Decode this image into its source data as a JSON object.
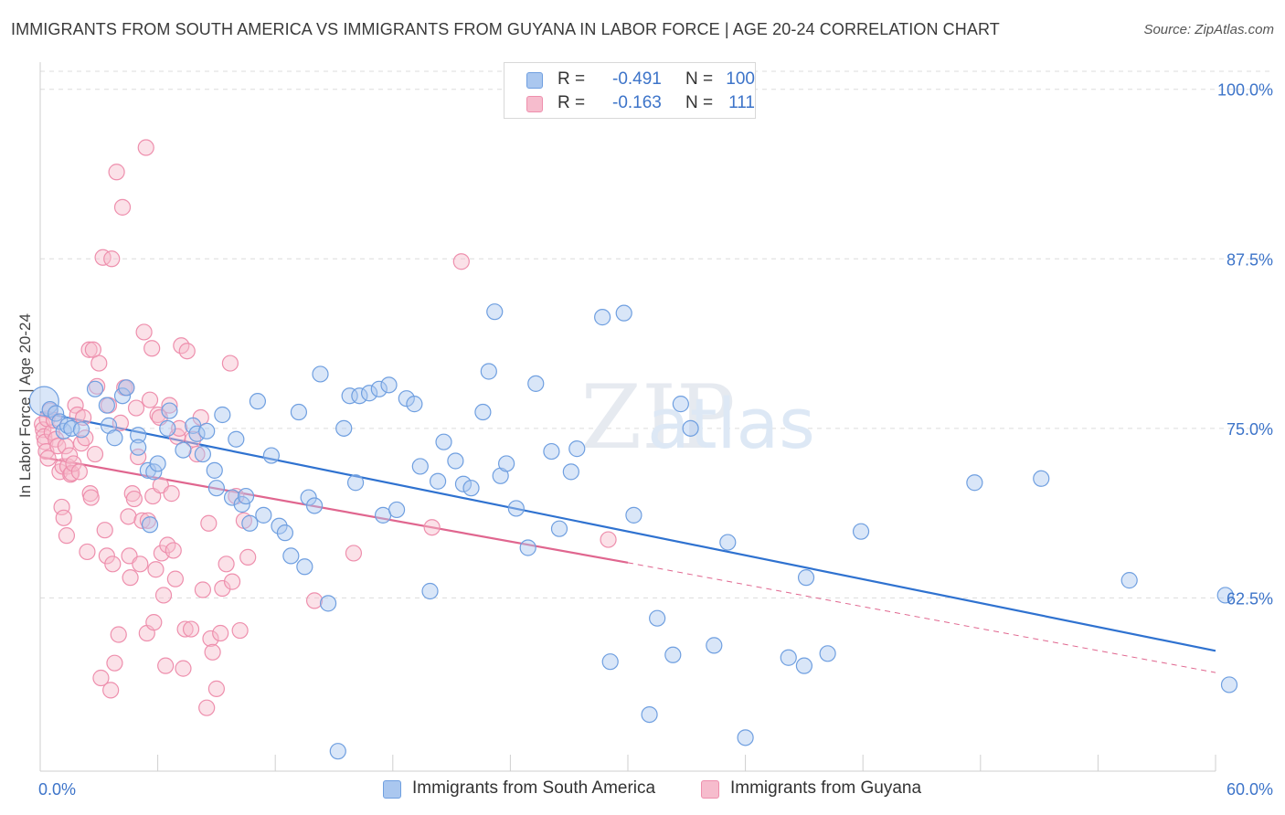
{
  "title": "IMMIGRANTS FROM SOUTH AMERICA VS IMMIGRANTS FROM GUYANA IN LABOR FORCE | AGE 20-24 CORRELATION CHART",
  "source": "Source: ZipAtlas.com",
  "watermark": "ZIPatlas",
  "legend": {
    "rows": [
      {
        "r_label": "R =",
        "r_value": "-0.491",
        "n_label": "N =",
        "n_value": "100",
        "color": "#7aaae8"
      },
      {
        "r_label": "R =",
        "r_value": "-0.163",
        "n_label": "N =",
        "n_value": "111",
        "color": "#f2a0b8"
      }
    ]
  },
  "bottom_legend": {
    "south_america": "Immigrants from South America",
    "guyana": "Immigrants from Guyana"
  },
  "colors": {
    "blue_fill": "#aac7ef",
    "blue_stroke": "#6f9fe0",
    "blue_line": "#2f72d0",
    "pink_fill": "#f6bccd",
    "pink_stroke": "#ee8fad",
    "pink_line": "#e0668f",
    "axis_text": "#3d74c9",
    "grid": "#dcdcdc"
  },
  "chart_data": {
    "type": "scatter",
    "title": "IMMIGRANTS FROM SOUTH AMERICA VS IMMIGRANTS FROM GUYANA IN LABOR FORCE | AGE 20-24 CORRELATION CHART",
    "xlabel": "",
    "ylabel": "In Labor Force | Age 20-24",
    "xlim": [
      0,
      60
    ],
    "ylim": [
      50,
      102
    ],
    "x_tick_labels": [
      {
        "value": 0,
        "label": "0.0%"
      },
      {
        "value": 60,
        "label": "60.0%"
      }
    ],
    "y_tick_labels": [
      {
        "value": 100,
        "label": "100.0%"
      },
      {
        "value": 87.5,
        "label": "87.5%"
      },
      {
        "value": 75,
        "label": "75.0%"
      },
      {
        "value": 62.5,
        "label": "62.5%"
      }
    ],
    "series": [
      {
        "name": "Immigrants from South America",
        "trend": {
          "x": [
            0,
            60
          ],
          "y": [
            76.2,
            58.6
          ]
        },
        "points": [
          [
            0.2,
            77.0
          ],
          [
            0.5,
            76.4
          ],
          [
            0.8,
            76.1
          ],
          [
            1.0,
            75.5
          ],
          [
            1.2,
            74.8
          ],
          [
            1.4,
            75.2
          ],
          [
            1.6,
            75.0
          ],
          [
            2.1,
            74.9
          ],
          [
            2.8,
            77.9
          ],
          [
            3.4,
            76.7
          ],
          [
            3.5,
            75.2
          ],
          [
            3.8,
            74.3
          ],
          [
            4.2,
            77.4
          ],
          [
            4.4,
            78.0
          ],
          [
            5.0,
            74.5
          ],
          [
            5.0,
            73.6
          ],
          [
            5.5,
            71.9
          ],
          [
            5.6,
            67.9
          ],
          [
            5.8,
            71.8
          ],
          [
            6.0,
            72.4
          ],
          [
            6.5,
            75.0
          ],
          [
            6.6,
            76.3
          ],
          [
            7.3,
            73.4
          ],
          [
            7.8,
            75.2
          ],
          [
            8.0,
            74.6
          ],
          [
            8.3,
            73.1
          ],
          [
            8.5,
            74.8
          ],
          [
            8.9,
            71.9
          ],
          [
            9.0,
            70.6
          ],
          [
            9.3,
            76.0
          ],
          [
            9.8,
            69.9
          ],
          [
            10.0,
            74.2
          ],
          [
            10.3,
            69.4
          ],
          [
            10.5,
            70.0
          ],
          [
            10.7,
            68.0
          ],
          [
            11.1,
            77.0
          ],
          [
            11.4,
            68.6
          ],
          [
            11.8,
            73.0
          ],
          [
            12.2,
            67.8
          ],
          [
            12.5,
            67.3
          ],
          [
            12.8,
            65.6
          ],
          [
            13.2,
            76.2
          ],
          [
            13.5,
            64.8
          ],
          [
            13.7,
            69.9
          ],
          [
            14.0,
            69.3
          ],
          [
            14.3,
            79.0
          ],
          [
            14.7,
            62.1
          ],
          [
            15.2,
            51.2
          ],
          [
            15.5,
            75.0
          ],
          [
            15.8,
            77.4
          ],
          [
            16.1,
            71.0
          ],
          [
            16.3,
            77.4
          ],
          [
            16.8,
            77.6
          ],
          [
            17.3,
            77.9
          ],
          [
            17.5,
            68.6
          ],
          [
            17.8,
            78.2
          ],
          [
            18.2,
            69.0
          ],
          [
            18.7,
            77.2
          ],
          [
            19.1,
            76.8
          ],
          [
            19.4,
            72.2
          ],
          [
            19.9,
            63.0
          ],
          [
            20.3,
            71.1
          ],
          [
            20.6,
            74.0
          ],
          [
            21.2,
            72.6
          ],
          [
            21.6,
            70.9
          ],
          [
            22.0,
            70.6
          ],
          [
            22.6,
            76.2
          ],
          [
            22.9,
            79.2
          ],
          [
            23.2,
            83.6
          ],
          [
            23.5,
            71.5
          ],
          [
            23.8,
            72.4
          ],
          [
            24.3,
            69.1
          ],
          [
            24.9,
            66.2
          ],
          [
            25.3,
            78.3
          ],
          [
            26.1,
            73.3
          ],
          [
            26.5,
            67.6
          ],
          [
            27.1,
            71.8
          ],
          [
            27.4,
            73.5
          ],
          [
            28.7,
            83.2
          ],
          [
            29.1,
            57.8
          ],
          [
            29.8,
            83.5
          ],
          [
            30.3,
            68.6
          ],
          [
            31.1,
            53.9
          ],
          [
            31.5,
            61.0
          ],
          [
            32.3,
            58.3
          ],
          [
            32.7,
            76.8
          ],
          [
            33.2,
            75.0
          ],
          [
            34.4,
            59.0
          ],
          [
            35.1,
            66.6
          ],
          [
            36.0,
            52.2
          ],
          [
            38.2,
            58.1
          ],
          [
            39.0,
            57.5
          ],
          [
            39.1,
            64.0
          ],
          [
            40.2,
            58.4
          ],
          [
            41.9,
            67.4
          ],
          [
            47.7,
            71.0
          ],
          [
            51.1,
            71.3
          ],
          [
            55.6,
            63.8
          ],
          [
            60.5,
            62.7
          ],
          [
            60.7,
            56.1
          ]
        ]
      },
      {
        "name": "Immigrants from Guyana",
        "trend": {
          "x": [
            0,
            30
          ],
          "y": [
            72.9,
            65.1
          ]
        },
        "trend_dashed": {
          "x": [
            30,
            60
          ],
          "y": [
            65.1,
            57.0
          ]
        },
        "points": [
          [
            0.1,
            75.3
          ],
          [
            0.15,
            74.9
          ],
          [
            0.2,
            74.4
          ],
          [
            0.25,
            74.0
          ],
          [
            0.3,
            73.3
          ],
          [
            0.35,
            75.7
          ],
          [
            0.4,
            72.8
          ],
          [
            0.5,
            76.3
          ],
          [
            0.6,
            74.7
          ],
          [
            0.7,
            75.6
          ],
          [
            0.8,
            74.2
          ],
          [
            0.9,
            73.7
          ],
          [
            1.0,
            71.8
          ],
          [
            1.1,
            69.2
          ],
          [
            1.15,
            72.2
          ],
          [
            1.2,
            68.4
          ],
          [
            1.3,
            73.7
          ],
          [
            1.35,
            67.1
          ],
          [
            1.4,
            72.2
          ],
          [
            1.5,
            73.0
          ],
          [
            1.55,
            71.6
          ],
          [
            1.6,
            71.7
          ],
          [
            1.7,
            72.4
          ],
          [
            1.8,
            76.7
          ],
          [
            1.9,
            76.0
          ],
          [
            2.0,
            71.8
          ],
          [
            2.1,
            73.9
          ],
          [
            2.2,
            75.8
          ],
          [
            2.3,
            74.3
          ],
          [
            2.4,
            65.9
          ],
          [
            2.5,
            80.8
          ],
          [
            2.55,
            70.2
          ],
          [
            2.6,
            69.9
          ],
          [
            2.7,
            80.8
          ],
          [
            2.8,
            73.1
          ],
          [
            2.9,
            78.1
          ],
          [
            3.0,
            79.8
          ],
          [
            3.1,
            56.6
          ],
          [
            3.2,
            87.6
          ],
          [
            3.3,
            67.5
          ],
          [
            3.4,
            65.6
          ],
          [
            3.5,
            76.7
          ],
          [
            3.6,
            55.7
          ],
          [
            3.65,
            87.5
          ],
          [
            3.7,
            65.0
          ],
          [
            3.8,
            57.7
          ],
          [
            3.9,
            93.9
          ],
          [
            4.0,
            59.8
          ],
          [
            4.1,
            75.4
          ],
          [
            4.2,
            91.3
          ],
          [
            4.3,
            78.0
          ],
          [
            4.4,
            78.0
          ],
          [
            4.5,
            68.5
          ],
          [
            4.55,
            65.6
          ],
          [
            4.6,
            64.0
          ],
          [
            4.7,
            70.2
          ],
          [
            4.8,
            69.8
          ],
          [
            4.9,
            76.5
          ],
          [
            5.0,
            72.9
          ],
          [
            5.1,
            65.0
          ],
          [
            5.2,
            68.2
          ],
          [
            5.3,
            82.1
          ],
          [
            5.4,
            95.7
          ],
          [
            5.45,
            59.9
          ],
          [
            5.5,
            68.2
          ],
          [
            5.6,
            77.1
          ],
          [
            5.7,
            80.9
          ],
          [
            5.75,
            70.0
          ],
          [
            5.8,
            60.7
          ],
          [
            5.9,
            64.6
          ],
          [
            6.0,
            76.0
          ],
          [
            6.1,
            75.8
          ],
          [
            6.15,
            70.8
          ],
          [
            6.2,
            65.8
          ],
          [
            6.3,
            62.7
          ],
          [
            6.4,
            57.5
          ],
          [
            6.5,
            66.4
          ],
          [
            6.6,
            76.7
          ],
          [
            6.7,
            70.2
          ],
          [
            6.8,
            66.0
          ],
          [
            6.9,
            63.9
          ],
          [
            7.0,
            74.4
          ],
          [
            7.1,
            75.0
          ],
          [
            7.2,
            81.1
          ],
          [
            7.3,
            57.3
          ],
          [
            7.4,
            60.2
          ],
          [
            7.5,
            80.7
          ],
          [
            7.7,
            60.2
          ],
          [
            7.8,
            74.2
          ],
          [
            8.0,
            73.1
          ],
          [
            8.2,
            75.8
          ],
          [
            8.3,
            63.1
          ],
          [
            8.5,
            54.4
          ],
          [
            8.6,
            68.0
          ],
          [
            8.7,
            59.5
          ],
          [
            8.8,
            58.5
          ],
          [
            9.0,
            55.8
          ],
          [
            9.2,
            59.9
          ],
          [
            9.3,
            63.2
          ],
          [
            9.5,
            65.0
          ],
          [
            9.7,
            79.8
          ],
          [
            9.8,
            63.7
          ],
          [
            10.0,
            70.0
          ],
          [
            10.2,
            60.1
          ],
          [
            10.4,
            68.2
          ],
          [
            10.6,
            65.5
          ],
          [
            14.0,
            62.3
          ],
          [
            16.0,
            65.8
          ],
          [
            20.0,
            67.7
          ],
          [
            21.5,
            87.3
          ],
          [
            29.0,
            66.8
          ]
        ]
      }
    ]
  }
}
